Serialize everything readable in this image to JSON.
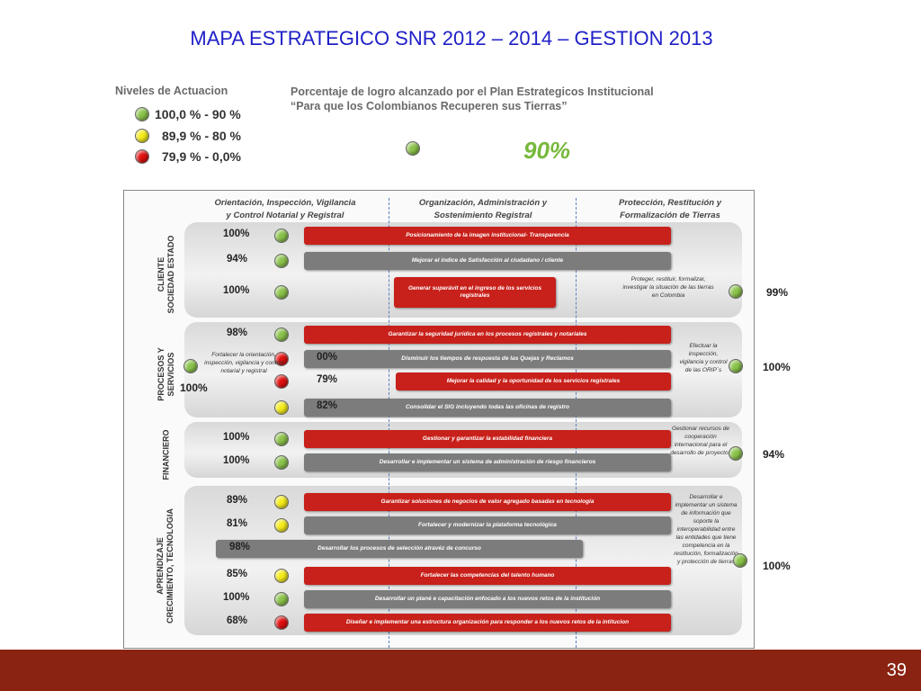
{
  "title": "MAPA ESTRATEGICO  SNR 2012 – 2014 – GESTION 2013",
  "page_number": "39",
  "legend": {
    "title": "Niveles de Actuacion",
    "items": [
      {
        "label": "100,0 % - 90 %",
        "color": "green"
      },
      {
        "label": "89,9 % - 80 %",
        "color": "yellow"
      },
      {
        "label": "79,9 % - 0,0%",
        "color": "red"
      }
    ]
  },
  "header_note": {
    "line1": "Porcentaje de logro alcanzado por el Plan Estrategicos Institucional",
    "line2": "“Para que los Colombianos Recuperen sus Tierras”",
    "value": "90%"
  },
  "columns": [
    {
      "line1": "Orientación, Inspección, Vigilancia",
      "line2": "y Control Notarial y Registral"
    },
    {
      "line1": "Organización, Administración y",
      "line2": "Sostenimiento Registral"
    },
    {
      "line1": "Protección, Restitución y",
      "line2": "Formalización de Tierras"
    }
  ],
  "sections": {
    "cliente": {
      "line1": "CLIENTE",
      "line2": "SOCIEDAD ESTADO"
    },
    "procesos": {
      "line1": "PROCESOS Y",
      "line2": "SERVICIOS"
    },
    "financiero": {
      "line1": "FINANCIERO",
      "line2": ""
    },
    "aprendizaje": {
      "line1": "APRENDIZAJE",
      "line2": "CRECIMIENTO, TECNOLOGIA"
    }
  },
  "rows": [
    {
      "pct": "100%",
      "color": "green",
      "bar": "red",
      "label": "Posicionamiento de la imagen institucional-  Transparencia"
    },
    {
      "pct": "94%",
      "color": "green",
      "bar": "gray",
      "label": "Mejorar el índice de Satisfacción al ciudadano / cliente"
    },
    {
      "pct": "100%",
      "color": "green",
      "bar": "red",
      "label": "Generar superávit en el ingreso de los servicios registrales"
    },
    {
      "pct": "98%",
      "color": "green",
      "bar": "red",
      "label": "Garantizar la seguridad jurídica en los procesos registrales y notariales"
    },
    {
      "pct": "00%",
      "color": "red",
      "bar": "gray",
      "label": "Disminuir los tiempos de respuesta de las Quejas  y Reclamos"
    },
    {
      "pct": "79%",
      "color": "red",
      "bar": "red",
      "label": "Mejorar la calidad y la oportunidad de los servicios registrales"
    },
    {
      "pct": "82%",
      "color": "yellow",
      "bar": "gray",
      "label": "Consolidar el SIG incluyendo todas las oficinas de registro"
    },
    {
      "pct": "100%",
      "color": "green",
      "bar": "red",
      "label": "Gestionar y garantizar la estabilidad financiera"
    },
    {
      "pct": "100%",
      "color": "green",
      "bar": "gray",
      "label": "Desarrollar e implementar un sistema de administración de riesgo financieros"
    },
    {
      "pct": "89%",
      "color": "yellow",
      "bar": "red",
      "label": "Garantizar soluciones de negocios de valor  agregado basadas en tecnología"
    },
    {
      "pct": "81%",
      "color": "yellow",
      "bar": "gray",
      "label": "Fortalecer y modernizar la plataforma tecnológica"
    },
    {
      "pct": "98%",
      "color": "green",
      "bar": "gray",
      "label": "Desarrollar los procesos de selección atravéz de concurso"
    },
    {
      "pct": "85%",
      "color": "yellow",
      "bar": "red",
      "label": "Fortalecer las competencias del talento humano"
    },
    {
      "pct": "100%",
      "color": "green",
      "bar": "gray",
      "label": "Desarrollar un plané e capacitación enfocado a los nuevos retos de la institución"
    },
    {
      "pct": "68%",
      "color": "red",
      "bar": "red",
      "label": "Diseñar e implementar una estructura organización para responder a los nuevos retos de la intitucion"
    }
  ],
  "side_notes": {
    "left_procesos": "Fortalecer la orientación, inspección, vigilancia y control notarial y registral",
    "left_procesos_pct": "100%",
    "right_cliente": "Proteger, restituir, formalizar, investigar la situación de las tierras en Colombia",
    "right_cliente_pct": "99%",
    "right_procesos": "Efectuar la inspección, vigilancia y control de las ORIP´s",
    "right_procesos_pct": "100%",
    "right_financiero": "Gestionar recursos de cooperación internacional para el desarrollo de proyectos",
    "right_financiero_pct": "94%",
    "right_aprendizaje": "Desarrollar e implementar un sistema de información que soporte la interoperabilidad entre las entidades que tiene competencia en la restitución, formalización y protección de tierras",
    "right_aprendizaje_pct": "100%"
  }
}
